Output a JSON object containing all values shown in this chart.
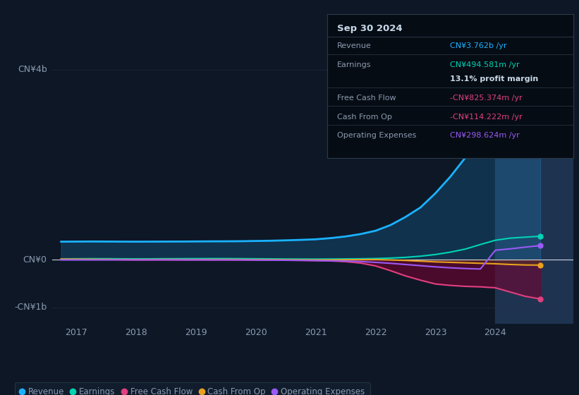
{
  "background_color": "#0e1726",
  "chart_bg": "#0e1726",
  "title": "Sep 30 2024",
  "xlim": [
    2016.6,
    2025.3
  ],
  "ylim": [
    -1350000000.0,
    4800000000.0
  ],
  "ytick_positions": [
    -1000000000.0,
    0,
    4000000000.0
  ],
  "ytick_labels": [
    "-CN¥1b",
    "CN¥0",
    "CN¥4b"
  ],
  "xticks": [
    2017,
    2018,
    2019,
    2020,
    2021,
    2022,
    2023,
    2024
  ],
  "years": [
    2016.75,
    2017.0,
    2017.25,
    2017.5,
    2017.75,
    2018.0,
    2018.25,
    2018.5,
    2018.75,
    2019.0,
    2019.25,
    2019.5,
    2019.75,
    2020.0,
    2020.25,
    2020.5,
    2020.75,
    2021.0,
    2021.25,
    2021.5,
    2021.75,
    2022.0,
    2022.25,
    2022.5,
    2022.75,
    2023.0,
    2023.25,
    2023.5,
    2023.75,
    2024.0,
    2024.25,
    2024.5,
    2024.75
  ],
  "revenue": [
    380000000.0,
    382000000.0,
    384000000.0,
    383000000.0,
    381000000.0,
    380000000.0,
    381000000.0,
    382000000.0,
    383000000.0,
    385000000.0,
    387000000.0,
    388000000.0,
    390000000.0,
    395000000.0,
    400000000.0,
    408000000.0,
    418000000.0,
    430000000.0,
    455000000.0,
    490000000.0,
    540000000.0,
    610000000.0,
    730000000.0,
    900000000.0,
    1100000000.0,
    1400000000.0,
    1750000000.0,
    2150000000.0,
    2650000000.0,
    3150000000.0,
    3450000000.0,
    3650000000.0,
    3762000000.0
  ],
  "earnings": [
    18000000.0,
    20000000.0,
    22000000.0,
    21000000.0,
    19000000.0,
    18000000.0,
    19000000.0,
    21000000.0,
    22000000.0,
    23000000.0,
    24000000.0,
    24000000.0,
    22000000.0,
    20000000.0,
    18000000.0,
    15000000.0,
    14000000.0,
    13000000.0,
    15000000.0,
    17000000.0,
    20000000.0,
    25000000.0,
    35000000.0,
    50000000.0,
    75000000.0,
    110000000.0,
    160000000.0,
    225000000.0,
    320000000.0,
    410000000.0,
    455000000.0,
    475000000.0,
    494581000.0
  ],
  "free_cash_flow": [
    8000000.0,
    6000000.0,
    4000000.0,
    2000000.0,
    -1000000.0,
    -4000000.0,
    -3000000.0,
    -2000000.0,
    -3000000.0,
    -4000000.0,
    -3000000.0,
    -2000000.0,
    -4000000.0,
    -6000000.0,
    -8000000.0,
    -10000000.0,
    -13000000.0,
    -18000000.0,
    -25000000.0,
    -40000000.0,
    -70000000.0,
    -130000000.0,
    -230000000.0,
    -340000000.0,
    -430000000.0,
    -510000000.0,
    -540000000.0,
    -560000000.0,
    -570000000.0,
    -590000000.0,
    -680000000.0,
    -770000000.0,
    -825374000.0
  ],
  "cash_from_op": [
    12000000.0,
    10000000.0,
    8000000.0,
    7000000.0,
    5000000.0,
    4000000.0,
    5000000.0,
    6000000.0,
    5000000.0,
    4000000.0,
    5000000.0,
    6000000.0,
    4000000.0,
    2000000.0,
    1000000.0,
    -1000000.0,
    -2000000.0,
    -4000000.0,
    -3000000.0,
    -1000000.0,
    2000000.0,
    5000000.0,
    -5000000.0,
    -15000000.0,
    -30000000.0,
    -45000000.0,
    -55000000.0,
    -65000000.0,
    -75000000.0,
    -85000000.0,
    -100000000.0,
    -110000000.0,
    -114222000.0
  ],
  "op_expenses": [
    -4000000.0,
    -4000000.0,
    -4000000.0,
    -3000000.0,
    -2000000.0,
    -3000000.0,
    -2000000.0,
    -2000000.0,
    -3000000.0,
    -3000000.0,
    -4000000.0,
    -4000000.0,
    -5000000.0,
    -7000000.0,
    -9000000.0,
    -11000000.0,
    -14000000.0,
    -18000000.0,
    -23000000.0,
    -28000000.0,
    -38000000.0,
    -55000000.0,
    -75000000.0,
    -100000000.0,
    -125000000.0,
    -150000000.0,
    -170000000.0,
    -185000000.0,
    -195000000.0,
    200000000.0,
    230000000.0,
    265000000.0,
    298624000.0
  ],
  "revenue_color": "#1ab2ff",
  "earnings_color": "#00d4b4",
  "fcf_color": "#e0407f",
  "cfo_color": "#e8a020",
  "opex_color": "#9b59f5",
  "shaded_region_start": 2024.0,
  "shaded_region_end": 2025.3,
  "shaded_color": "#1e3350",
  "grid_color": "#243347",
  "text_color": "#8a9bb0",
  "zero_line_color": "#e0e8f0",
  "info_box_bg": "#060c14",
  "info_box_border": "#2a3a4a",
  "info_title_color": "#c8d8e8",
  "info_rows": [
    {
      "label": "Revenue",
      "value": "CN¥3.762b /yr",
      "label_color": "#8a9bb0",
      "value_color": "#1ab2ff"
    },
    {
      "label": "Earnings",
      "value": "CN¥494.581m /yr",
      "label_color": "#8a9bb0",
      "value_color": "#00d4b4"
    },
    {
      "label": "",
      "value": "13.1% profit margin",
      "label_color": "#8a9bb0",
      "value_color": "#c8d8e8"
    },
    {
      "label": "Free Cash Flow",
      "value": "-CN¥825.374m /yr",
      "label_color": "#8a9bb0",
      "value_color": "#e0407f"
    },
    {
      "label": "Cash From Op",
      "value": "-CN¥114.222m /yr",
      "label_color": "#8a9bb0",
      "value_color": "#e0407f"
    },
    {
      "label": "Operating Expenses",
      "value": "CN¥298.624m /yr",
      "label_color": "#8a9bb0",
      "value_color": "#9b59f5"
    }
  ],
  "legend_items": [
    {
      "label": "Revenue",
      "color": "#1ab2ff"
    },
    {
      "label": "Earnings",
      "color": "#00d4b4"
    },
    {
      "label": "Free Cash Flow",
      "color": "#e0407f"
    },
    {
      "label": "Cash From Op",
      "color": "#e8a020"
    },
    {
      "label": "Operating Expenses",
      "color": "#9b59f5"
    }
  ]
}
